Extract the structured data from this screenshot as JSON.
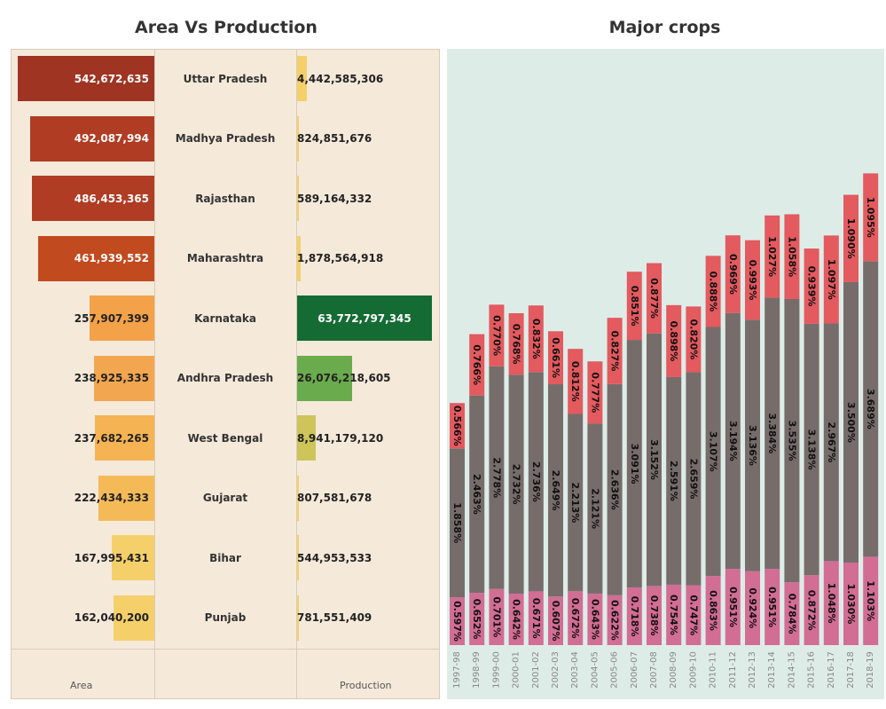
{
  "left_title": "Area Vs Production",
  "right_title": "Major crops",
  "colors": {
    "panel_bg": "#f5e9da",
    "right_bg": "#deece8",
    "bottom": "#d26d94",
    "middle": "#766d6b",
    "top": "#e35a5f"
  },
  "chart_data": [
    {
      "type": "bar",
      "orientation": "horizontal",
      "title": "Area Vs Production",
      "categories": [
        "Uttar Pradesh",
        "Madhya Pradesh",
        "Rajasthan",
        "Maharashtra",
        "Karnataka",
        "Andhra Pradesh",
        "West Bengal",
        "Gujarat",
        "Bihar",
        "Punjab"
      ],
      "series": [
        {
          "name": "Area",
          "values": [
            542672635,
            492087994,
            486453365,
            461939552,
            257907399,
            238925335,
            237682265,
            222434333,
            167995431,
            162040200
          ],
          "labels": [
            "542,672,635",
            "492,087,994",
            "486,453,365",
            "461,939,552",
            "257,907,399",
            "238,925,335",
            "237,682,265",
            "222,434,333",
            "167,995,431",
            "162,040,200"
          ],
          "colors": [
            "#9f3423",
            "#b03c23",
            "#b03c23",
            "#c24a1f",
            "#f3a24a",
            "#f3a650",
            "#f5b353",
            "#f5ba58",
            "#f5d06a",
            "#f5d06a"
          ]
        },
        {
          "name": "Production",
          "values": [
            4442585306,
            824851676,
            589164332,
            1878564918,
            63772797345,
            26076218605,
            8941179120,
            807581678,
            544953533,
            781551409
          ],
          "labels": [
            "4,442,585,306",
            "824,851,676",
            "589,164,332",
            "1,878,564,918",
            "63,772,797,345",
            "26,076,218,605",
            "8,941,179,120",
            "807,581,678",
            "544,953,533",
            "781,551,409"
          ],
          "colors": [
            "#f5d06a",
            "#f5d06a",
            "#f5d06a",
            "#f5d06a",
            "#156b34",
            "#6aab4d",
            "#cdc45a",
            "#f5d06a",
            "#f5d06a",
            "#f5d06a"
          ]
        }
      ]
    },
    {
      "type": "bar",
      "stacked": true,
      "title": "Major crops",
      "categories": [
        "1997-98",
        "1998-99",
        "1999-00",
        "2000-01",
        "2001-02",
        "2002-03",
        "2003-04",
        "2004-05",
        "2005-06",
        "2006-07",
        "2007-08",
        "2008-09",
        "2009-10",
        "2010-11",
        "2011-12",
        "2012-13",
        "2013-14",
        "2014-15",
        "2015-16",
        "2016-17",
        "2017-18",
        "2018-19"
      ],
      "series": [
        {
          "values": [
            0.597,
            0.652,
            0.701,
            0.642,
            0.671,
            0.607,
            0.672,
            0.643,
            0.622,
            0.718,
            0.738,
            0.754,
            0.747,
            0.863,
            0.951,
            0.924,
            0.951,
            0.784,
            0.872,
            1.048,
            1.03,
            1.103
          ],
          "labels": [
            "0.597%",
            "0.652%",
            "0.701%",
            "0.642%",
            "0.671%",
            "0.607%",
            "0.672%",
            "0.643%",
            "0.622%",
            "0.718%",
            "0.738%",
            "0.754%",
            "0.747%",
            "0.863%",
            "0.951%",
            "0.924%",
            "0.951%",
            "0.784%",
            "0.872%",
            "1.048%",
            "1.030%",
            "1.103%"
          ]
        },
        {
          "values": [
            1.858,
            2.463,
            2.778,
            2.732,
            2.736,
            2.649,
            2.213,
            2.121,
            2.636,
            3.091,
            3.152,
            2.591,
            2.659,
            3.107,
            3.194,
            3.136,
            3.384,
            3.535,
            3.138,
            2.967,
            3.5,
            3.689
          ],
          "labels": [
            "1.858%",
            "2.463%",
            "2.778%",
            "2.732%",
            "2.736%",
            "2.649%",
            "2.213%",
            "2.121%",
            "2.636%",
            "3.091%",
            "3.152%",
            "2.591%",
            "2.659%",
            "3.107%",
            "3.194%",
            "3.136%",
            "3.384%",
            "3.535%",
            "3.138%",
            "2.967%",
            "3.500%",
            "3.689%"
          ]
        },
        {
          "values": [
            0.566,
            0.766,
            0.77,
            0.768,
            0.832,
            0.661,
            0.812,
            0.777,
            0.827,
            0.851,
            0.877,
            0.898,
            0.82,
            0.888,
            0.969,
            0.993,
            1.027,
            1.058,
            0.939,
            1.097,
            1.09,
            1.095
          ],
          "labels": [
            "0.566%",
            "0.766%",
            "0.770%",
            "0.768%",
            "0.832%",
            "0.661%",
            "0.812%",
            "0.777%",
            "0.827%",
            "0.851%",
            "0.877%",
            "0.898%",
            "0.820%",
            "0.888%",
            "0.969%",
            "0.993%",
            "1.027%",
            "1.058%",
            "0.939%",
            "1.097%",
            "1.090%",
            "1.095%"
          ]
        }
      ]
    }
  ],
  "footer": {
    "area_label": "Area",
    "production_label": "Production"
  }
}
